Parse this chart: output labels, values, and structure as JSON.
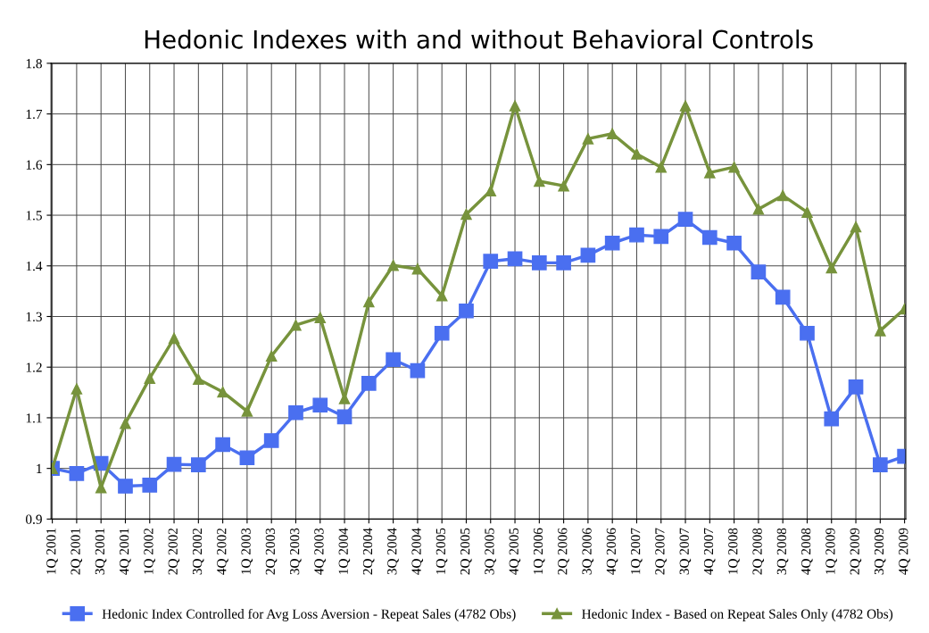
{
  "chart_data": {
    "type": "line",
    "title": "Hedonic Indexes with and without Behavioral Controls",
    "categories": [
      "1Q 2001",
      "2Q 2001",
      "3Q 2001",
      "4Q 2001",
      "1Q 2002",
      "2Q 2002",
      "3Q 2002",
      "4Q 2002",
      "1Q 2003",
      "2Q 2003",
      "3Q 2003",
      "4Q 2003",
      "1Q 2004",
      "2Q 2004",
      "3Q 2004",
      "4Q 2004",
      "1Q 2005",
      "2Q 2005",
      "3Q 2005",
      "4Q 2005",
      "1Q 2006",
      "2Q 2006",
      "3Q 2006",
      "4Q 2006",
      "1Q 2007",
      "2Q 2007",
      "3Q 2007",
      "4Q 2007",
      "1Q 2008",
      "2Q 2008",
      "3Q 2008",
      "4Q 2008",
      "1Q 2009",
      "2Q 2009",
      "3Q 2009",
      "4Q 2009"
    ],
    "series": [
      {
        "name": "Hedonic Index Controlled for Avg Loss Aversion - Repeat Sales (4782 Obs)",
        "color": "#4a6ff0",
        "marker": "square",
        "values": [
          1.0,
          0.99,
          1.01,
          0.965,
          0.967,
          1.008,
          1.007,
          1.047,
          1.021,
          1.055,
          1.11,
          1.125,
          1.102,
          1.168,
          1.215,
          1.193,
          1.267,
          1.311,
          1.409,
          1.414,
          1.406,
          1.406,
          1.421,
          1.445,
          1.461,
          1.458,
          1.492,
          1.456,
          1.445,
          1.388,
          1.338,
          1.267,
          1.098,
          1.161,
          1.007,
          1.024
        ]
      },
      {
        "name": "Hedonic Index - Based on Repeat Sales Only (4782 Obs)",
        "color": "#77933c",
        "marker": "triangle",
        "values": [
          1.0,
          1.157,
          0.962,
          1.089,
          1.178,
          1.257,
          1.176,
          1.151,
          1.113,
          1.222,
          1.283,
          1.298,
          1.138,
          1.329,
          1.401,
          1.394,
          1.341,
          1.502,
          1.548,
          1.716,
          1.567,
          1.558,
          1.651,
          1.661,
          1.621,
          1.595,
          1.716,
          1.584,
          1.595,
          1.512,
          1.539,
          1.506,
          1.396,
          1.477,
          1.272,
          1.315
        ]
      }
    ],
    "ylim": [
      0.9,
      1.8
    ],
    "yticks": [
      0.9,
      1,
      1.1,
      1.2,
      1.3,
      1.4,
      1.5,
      1.6,
      1.7,
      1.8
    ],
    "grid": true,
    "legend": "bottom",
    "line_style": "solid"
  }
}
